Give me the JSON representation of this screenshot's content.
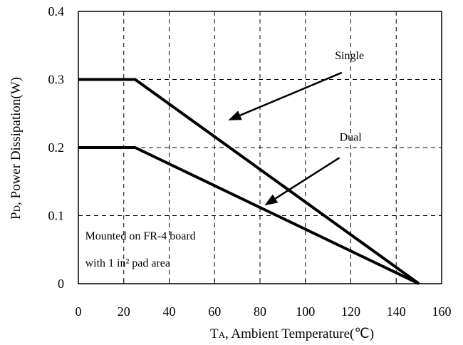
{
  "chart_data": {
    "type": "line",
    "xlim": [
      0,
      160
    ],
    "ylim": [
      0,
      0.4
    ],
    "xticks": [
      "0",
      "20",
      "40",
      "60",
      "80",
      "100",
      "120",
      "140",
      "160"
    ],
    "yticks": [
      "0",
      "0.1",
      "0.2",
      "0.3",
      "0.4"
    ],
    "grid": true,
    "grid_style": "dashed",
    "xlabel": {
      "prefix": "T",
      "subscript": "A",
      "rest": ", Ambient Temperature(℃)"
    },
    "ylabel": {
      "prefix": "P",
      "subscript": "D",
      "rest": ", Power Dissipation(W)"
    },
    "series": [
      {
        "name": "Single",
        "x": [
          0,
          25,
          150
        ],
        "y": [
          0.3,
          0.3,
          0
        ]
      },
      {
        "name": "Dual",
        "x": [
          0,
          25,
          150
        ],
        "y": [
          0.2,
          0.2,
          0
        ]
      }
    ],
    "annotations": [
      {
        "id": "single-label",
        "text": "Single",
        "at": [
          113,
          0.33
        ],
        "arrow_from": [
          116,
          0.31
        ],
        "arrow_to": [
          66,
          0.24
        ]
      },
      {
        "id": "dual-label",
        "text": "Dual",
        "at": [
          115,
          0.21
        ],
        "arrow_from": [
          115,
          0.185
        ],
        "arrow_to": [
          82,
          0.115
        ]
      },
      {
        "id": "note-line-1",
        "text": "Mounted on FR-4 board",
        "at": [
          3,
          0.065
        ]
      },
      {
        "id": "note-line-2",
        "text": "with 1 in² pad area",
        "at": [
          3,
          0.025
        ]
      }
    ],
    "line_color": "#000000"
  }
}
